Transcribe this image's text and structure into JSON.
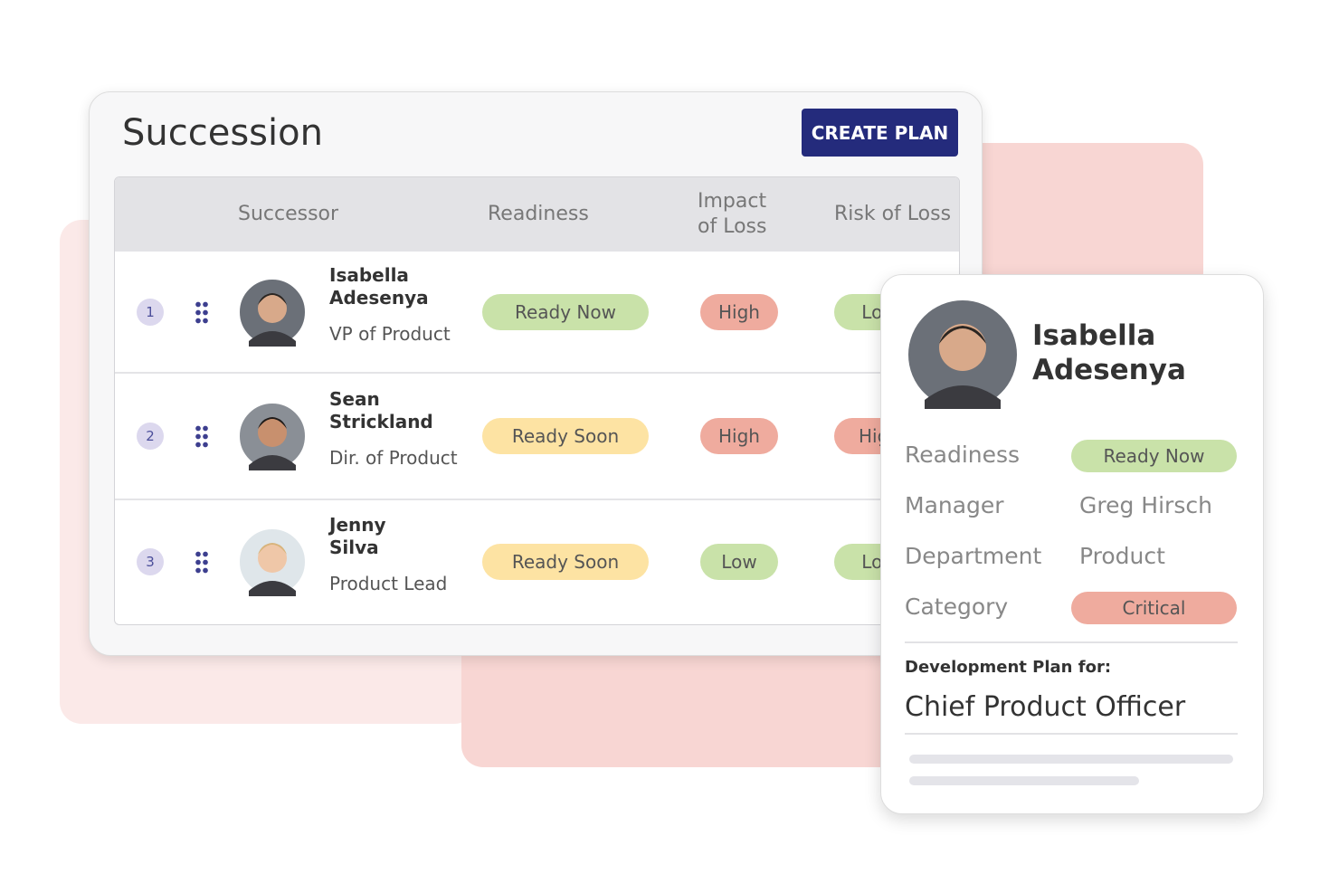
{
  "header": {
    "title": "Succession",
    "button": "CREATE PLAN"
  },
  "table": {
    "columns": [
      "Successor",
      "Readiness",
      "Impact of Loss",
      "Risk of Loss"
    ],
    "rows": [
      {
        "rank": 1,
        "name": "Isabella Adesenya",
        "role": "VP of Product",
        "readiness": "Ready Now",
        "readiness_color": "#c9e2a9",
        "impact": "High",
        "impact_color": "#efab9e",
        "risk": "Low",
        "risk_color": "#c9e2a9"
      },
      {
        "rank": 2,
        "name": "Sean Strickland",
        "role": "Dir. of Product",
        "readiness": "Ready Soon",
        "readiness_color": "#fde3a3",
        "impact": "High",
        "impact_color": "#efab9e",
        "risk": "High",
        "risk_color": "#efab9e"
      },
      {
        "rank": 3,
        "name": "Jenny Silva",
        "role": "Product Lead",
        "readiness": "Ready Soon",
        "readiness_color": "#fde3a3",
        "impact": "Low",
        "impact_color": "#c9e2a9",
        "risk": "Low",
        "risk_color": "#c9e2a9"
      }
    ]
  },
  "card": {
    "name": "Isabella Adesenya",
    "fields": [
      {
        "label": "Readiness",
        "value": "Ready Now",
        "color": "#c9e2a9"
      },
      {
        "label": "Manager",
        "value": "Greg Hirsch"
      },
      {
        "label": "Department",
        "value": "Product"
      },
      {
        "label": "Category",
        "value": "Critical",
        "color": "#efab9e"
      }
    ],
    "plan_label": "Development Plan for:",
    "plan_title": "Chief Product Officer"
  }
}
